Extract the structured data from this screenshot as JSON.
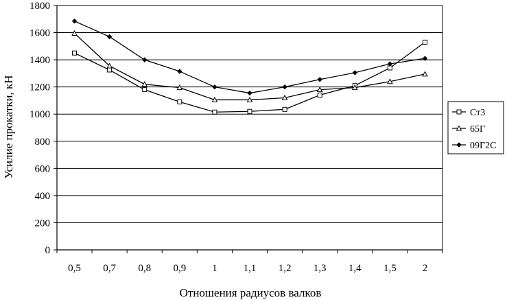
{
  "chart_data": {
    "type": "line",
    "title": "",
    "xlabel": "Отношения радиусов валков",
    "ylabel": "Усилие прокатки, кН",
    "categories": [
      "0,5",
      "0,7",
      "0,8",
      "0,9",
      "1",
      "1,1",
      "1,2",
      "1,3",
      "1,4",
      "1,5",
      "2"
    ],
    "ylim": [
      0,
      1800
    ],
    "yticks": [
      0,
      200,
      400,
      600,
      800,
      1000,
      1200,
      1400,
      1600,
      1800
    ],
    "grid": true,
    "legend_position": "right",
    "series": [
      {
        "name": "Ст3",
        "marker": "square",
        "values": [
          1450,
          1325,
          1180,
          1090,
          1015,
          1020,
          1035,
          1140,
          1210,
          1340,
          1530
        ]
      },
      {
        "name": "65Г",
        "marker": "triangle",
        "values": [
          1595,
          1355,
          1220,
          1195,
          1105,
          1105,
          1120,
          1180,
          1195,
          1240,
          1295
        ]
      },
      {
        "name": "09Г2С",
        "marker": "diamond",
        "values": [
          1685,
          1570,
          1400,
          1315,
          1200,
          1155,
          1200,
          1255,
          1305,
          1370,
          1410
        ]
      }
    ]
  }
}
